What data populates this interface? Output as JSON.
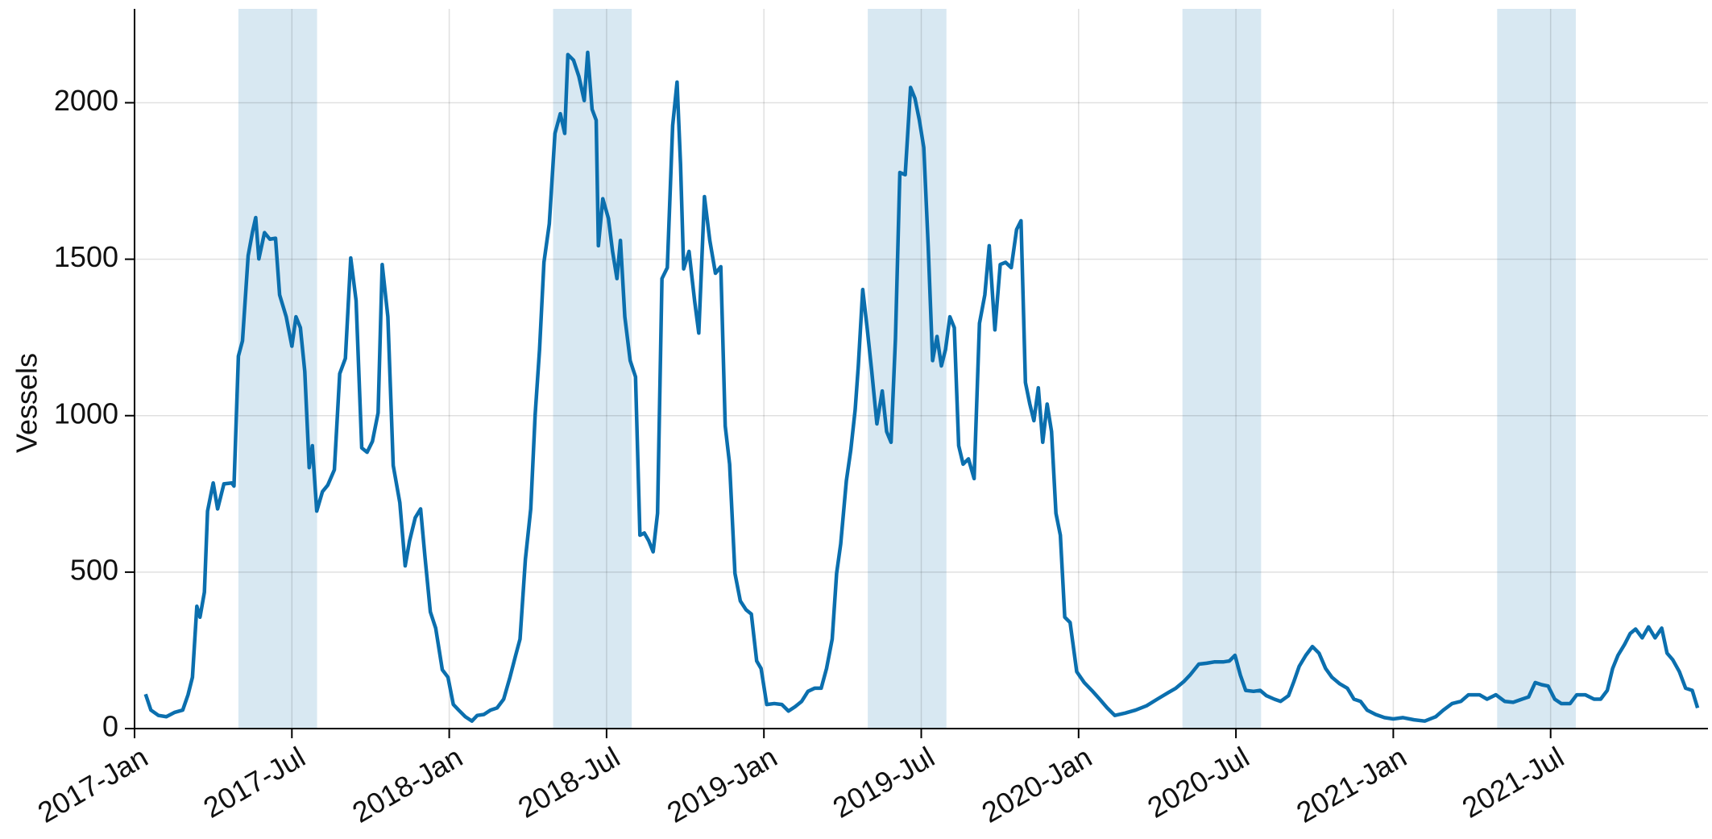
{
  "chart_data": {
    "type": "line",
    "ylabel": "Vessels",
    "x": [
      2017.035,
      2017.052,
      2017.076,
      2017.101,
      2017.128,
      2017.153,
      2017.17,
      2017.184,
      2017.198,
      2017.208,
      2017.222,
      2017.232,
      2017.25,
      2017.264,
      2017.284,
      2017.309,
      2017.316,
      2017.33,
      2017.343,
      2017.361,
      2017.375,
      2017.385,
      2017.395,
      2017.413,
      2017.43,
      2017.448,
      2017.461,
      2017.482,
      2017.5,
      2017.513,
      2017.527,
      2017.541,
      2017.555,
      2017.565,
      2017.579,
      2017.597,
      2017.614,
      2017.635,
      2017.652,
      2017.67,
      2017.687,
      2017.704,
      2017.722,
      2017.739,
      2017.756,
      2017.774,
      2017.787,
      2017.805,
      2017.822,
      2017.843,
      2017.86,
      2017.874,
      2017.892,
      2017.909,
      2017.923,
      2017.94,
      2017.957,
      2017.978,
      2017.996,
      2018.013,
      2018.03,
      2018.051,
      2018.072,
      2018.089,
      2018.11,
      2018.131,
      2018.152,
      2018.173,
      2018.193,
      2018.211,
      2018.225,
      2018.242,
      2018.259,
      2018.273,
      2018.287,
      2018.301,
      2018.318,
      2018.336,
      2018.353,
      2018.367,
      2018.377,
      2018.395,
      2018.412,
      2018.429,
      2018.44,
      2018.454,
      2018.467,
      2018.474,
      2018.488,
      2018.506,
      2018.519,
      2018.533,
      2018.544,
      2018.558,
      2018.575,
      2018.592,
      2018.606,
      2018.62,
      2018.634,
      2018.648,
      2018.662,
      2018.676,
      2018.693,
      2018.71,
      2018.724,
      2018.735,
      2018.745,
      2018.762,
      2018.78,
      2018.793,
      2018.811,
      2018.828,
      2018.846,
      2018.863,
      2018.877,
      2018.891,
      2018.908,
      2018.925,
      2018.943,
      2018.96,
      2018.977,
      2018.991,
      2019.009,
      2019.033,
      2019.057,
      2019.078,
      2019.099,
      2019.12,
      2019.14,
      2019.161,
      2019.182,
      2019.199,
      2019.217,
      2019.231,
      2019.244,
      2019.262,
      2019.276,
      2019.29,
      2019.3,
      2019.314,
      2019.328,
      2019.342,
      2019.359,
      2019.376,
      2019.39,
      2019.404,
      2019.418,
      2019.432,
      2019.449,
      2019.466,
      2019.48,
      2019.494,
      2019.508,
      2019.522,
      2019.536,
      2019.55,
      2019.564,
      2019.577,
      2019.591,
      2019.605,
      2019.619,
      2019.633,
      2019.65,
      2019.668,
      2019.685,
      2019.702,
      2019.716,
      2019.734,
      2019.751,
      2019.768,
      2019.786,
      2019.803,
      2019.817,
      2019.831,
      2019.845,
      2019.858,
      2019.872,
      2019.886,
      2019.9,
      2019.914,
      2019.928,
      2019.942,
      2019.956,
      2019.973,
      2019.994,
      2020.018,
      2020.042,
      2020.067,
      2020.091,
      2020.115,
      2020.146,
      2020.181,
      2020.216,
      2020.25,
      2020.285,
      2020.309,
      2020.334,
      2020.354,
      2020.382,
      2020.407,
      2020.431,
      2020.459,
      2020.479,
      2020.497,
      2020.514,
      2020.531,
      2020.556,
      2020.577,
      2020.597,
      2020.622,
      2020.642,
      2020.667,
      2020.684,
      2020.701,
      2020.722,
      2020.743,
      2020.764,
      2020.785,
      2020.805,
      2020.83,
      2020.854,
      2020.875,
      2020.896,
      2020.917,
      2020.944,
      2020.972,
      2021.0,
      2021.031,
      2021.066,
      2021.1,
      2021.135,
      2021.159,
      2021.187,
      2021.215,
      2021.239,
      2021.274,
      2021.298,
      2021.326,
      2021.354,
      2021.381,
      2021.409,
      2021.43,
      2021.451,
      2021.472,
      2021.492,
      2021.513,
      2021.534,
      2021.562,
      2021.583,
      2021.61,
      2021.638,
      2021.659,
      2021.68,
      2021.697,
      2021.714,
      2021.735,
      2021.753,
      2021.77,
      2021.791,
      2021.811,
      2021.832,
      2021.853,
      2021.87,
      2021.888,
      2021.909,
      2021.929,
      2021.95,
      2021.967
    ],
    "values": [
      110,
      59,
      42,
      38,
      52,
      59,
      108,
      164,
      391,
      356,
      436,
      695,
      785,
      702,
      782,
      785,
      775,
      1190,
      1239,
      1511,
      1588,
      1633,
      1501,
      1585,
      1564,
      1567,
      1386,
      1316,
      1222,
      1316,
      1281,
      1141,
      834,
      904,
      695,
      757,
      778,
      827,
      1134,
      1183,
      1504,
      1368,
      897,
      883,
      918,
      1009,
      1483,
      1316,
      841,
      722,
      520,
      600,
      674,
      702,
      548,
      373,
      321,
      188,
      164,
      77,
      59,
      38,
      24,
      42,
      45,
      59,
      66,
      94,
      164,
      234,
      286,
      541,
      702,
      1002,
      1211,
      1490,
      1613,
      1902,
      1965,
      1902,
      2154,
      2136,
      2084,
      2007,
      2161,
      1979,
      1944,
      1543,
      1693,
      1630,
      1525,
      1438,
      1560,
      1316,
      1176,
      1124,
      618,
      625,
      600,
      565,
      688,
      1438,
      1473,
      1927,
      2066,
      1804,
      1469,
      1525,
      1365,
      1264,
      1700,
      1560,
      1455,
      1476,
      967,
      845,
      496,
      408,
      380,
      366,
      216,
      192,
      77,
      80,
      77,
      56,
      70,
      87,
      119,
      129,
      129,
      192,
      286,
      496,
      590,
      792,
      890,
      1019,
      1159,
      1403,
      1281,
      1148,
      974,
      1079,
      949,
      915,
      1246,
      1777,
      1770,
      2049,
      2014,
      1944,
      1857,
      1543,
      1176,
      1253,
      1159,
      1211,
      1316,
      1281,
      904,
      845,
      862,
      799,
      1295,
      1386,
      1543,
      1274,
      1483,
      1490,
      1473,
      1595,
      1623,
      1106,
      1037,
      984,
      1089,
      915,
      1037,
      949,
      688,
      618,
      356,
      339,
      182,
      147,
      122,
      94,
      66,
      42,
      49,
      59,
      73,
      94,
      115,
      129,
      150,
      171,
      206,
      209,
      213,
      213,
      216,
      234,
      171,
      122,
      119,
      122,
      105,
      94,
      87,
      105,
      150,
      199,
      234,
      262,
      241,
      192,
      164,
      143,
      129,
      94,
      87,
      59,
      45,
      35,
      31,
      35,
      28,
      24,
      38,
      59,
      80,
      87,
      108,
      108,
      94,
      108,
      87,
      84,
      94,
      101,
      147,
      140,
      136,
      94,
      80,
      80,
      108,
      108,
      94,
      94,
      122,
      192,
      234,
      269,
      304,
      318,
      290,
      325,
      290,
      321,
      241,
      220,
      182,
      129,
      122,
      66
    ],
    "color": "#0b6fae",
    "shaded_spans": [
      [
        2017.33,
        2017.58
      ],
      [
        2018.33,
        2018.58
      ],
      [
        2019.33,
        2019.58
      ],
      [
        2020.33,
        2020.58
      ],
      [
        2021.33,
        2021.58
      ]
    ],
    "shade_color": "#d8e8f2",
    "xlim": [
      2017,
      2022
    ],
    "xticks": [
      {
        "value": 2017,
        "label": "2017-Jan"
      },
      {
        "value": 2017.5,
        "label": "2017-Jul"
      },
      {
        "value": 2018,
        "label": "2018-Jan"
      },
      {
        "value": 2018.5,
        "label": "2018-Jul"
      },
      {
        "value": 2019,
        "label": "2019-Jan"
      },
      {
        "value": 2019.5,
        "label": "2019-Jul"
      },
      {
        "value": 2020,
        "label": "2020-Jan"
      },
      {
        "value": 2020.5,
        "label": "2020-Jul"
      },
      {
        "value": 2021,
        "label": "2021-Jan"
      },
      {
        "value": 2021.5,
        "label": "2021-Jul"
      }
    ],
    "ylim": [
      0,
      2300
    ],
    "yticks": [
      0,
      500,
      1000,
      1500,
      2000
    ],
    "grid": true
  }
}
